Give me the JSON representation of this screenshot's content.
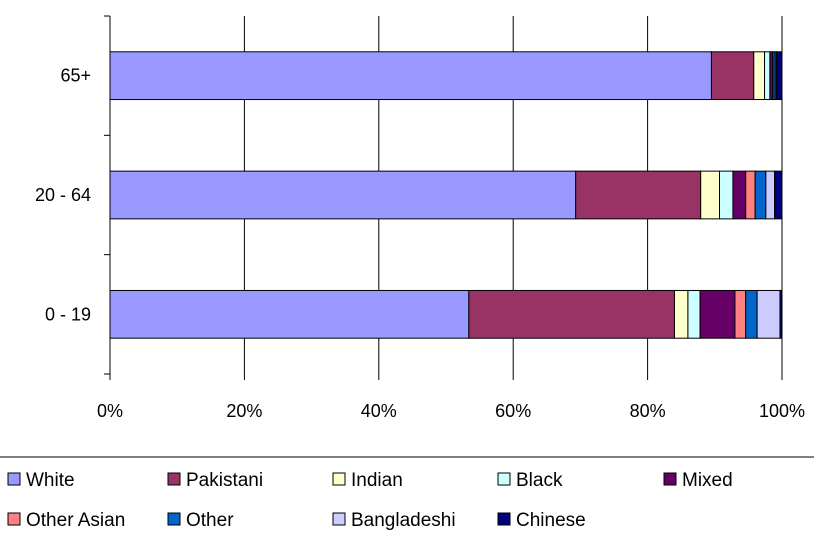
{
  "chart_data": {
    "type": "bar",
    "orientation": "horizontal",
    "stacked": "percent",
    "categories": [
      "65+",
      "20 - 64",
      "0 - 19"
    ],
    "xlim": [
      0,
      100
    ],
    "x_ticks": [
      "0%",
      "20%",
      "40%",
      "60%",
      "80%",
      "100%"
    ],
    "grid": "vertical",
    "legend_position": "bottom",
    "series": [
      {
        "name": "White",
        "color": "#9999ff",
        "values": [
          89.5,
          69.3,
          53.4
        ]
      },
      {
        "name": "Pakistani",
        "color": "#993366",
        "values": [
          6.3,
          18.6,
          30.6
        ]
      },
      {
        "name": "Indian",
        "color": "#ffffcc",
        "values": [
          1.6,
          2.8,
          2.0
        ]
      },
      {
        "name": "Black",
        "color": "#ccffff",
        "values": [
          0.8,
          2.0,
          1.8
        ]
      },
      {
        "name": "Mixed",
        "color": "#660066",
        "values": [
          0.4,
          1.9,
          5.2
        ]
      },
      {
        "name": "Other Asian",
        "color": "#ff8080",
        "values": [
          0.2,
          1.4,
          1.6
        ]
      },
      {
        "name": "Other",
        "color": "#0066cc",
        "values": [
          0.3,
          1.6,
          1.7
        ]
      },
      {
        "name": "Bangladeshi",
        "color": "#ccccff",
        "values": [
          0.1,
          1.3,
          3.4
        ]
      },
      {
        "name": "Chinese",
        "color": "#000080",
        "values": [
          0.8,
          1.1,
          0.3
        ]
      }
    ]
  }
}
